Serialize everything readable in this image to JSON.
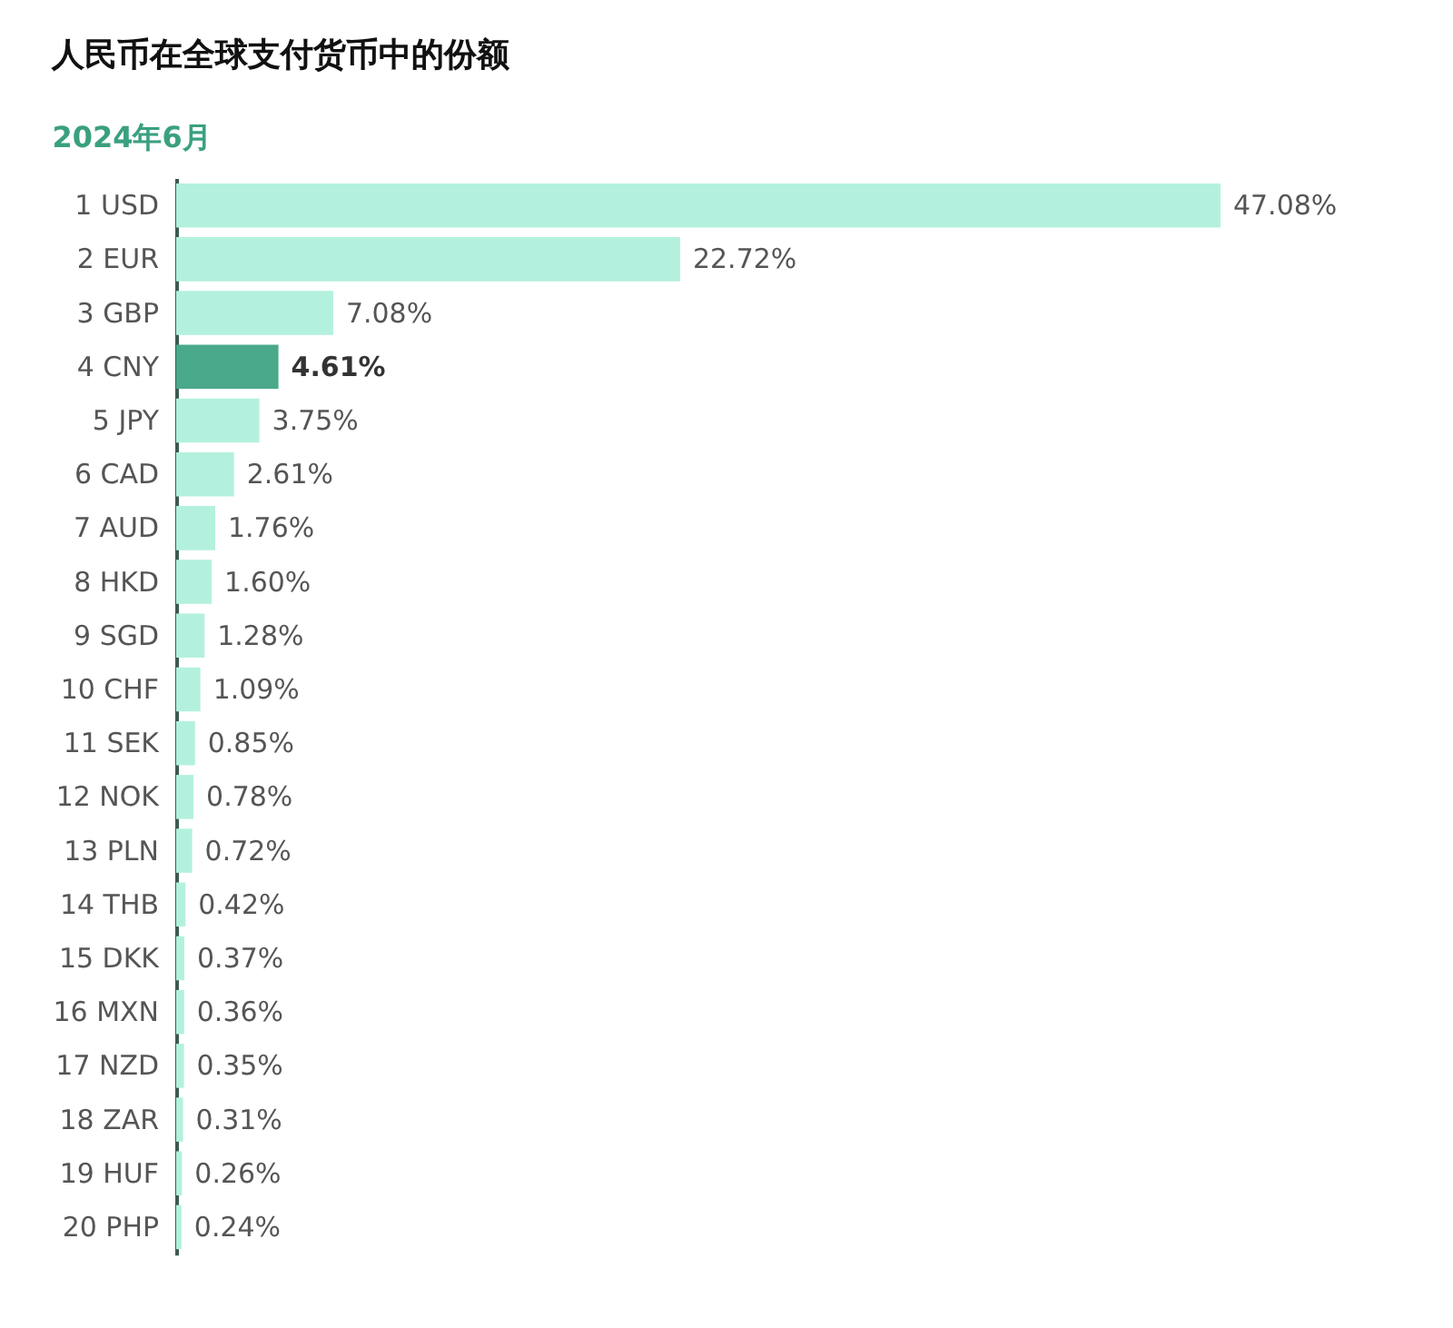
{
  "chart_data": {
    "type": "bar",
    "orientation": "horizontal",
    "title": "人民币在全球支付货币中的份额",
    "subtitle": "2024年6月",
    "categories": [
      "1 USD",
      "2 EUR",
      "3 GBP",
      "4 CNY",
      "5 JPY",
      "6 CAD",
      "7 AUD",
      "8 HKD",
      "9 SGD",
      "10 CHF",
      "11 SEK",
      "12 NOK",
      "13 PLN",
      "14 THB",
      "15 DKK",
      "16 MXN",
      "17 NZD",
      "18 ZAR",
      "19 HUF",
      "20 PHP"
    ],
    "values": [
      47.08,
      22.72,
      7.08,
      4.61,
      3.75,
      2.61,
      1.76,
      1.6,
      1.28,
      1.09,
      0.85,
      0.78,
      0.72,
      0.42,
      0.37,
      0.36,
      0.35,
      0.31,
      0.26,
      0.24
    ],
    "colors": [
      "#b3f1de",
      "#b3f1de",
      "#b3f1de",
      "#4aa98a",
      "#b3f1de",
      "#b3f1de",
      "#b3f1de",
      "#b3f1de",
      "#b3f1de",
      "#b3f1de",
      "#b3f1de",
      "#b3f1de",
      "#b3f1de",
      "#b3f1de",
      "#b3f1de",
      "#b3f1de",
      "#b3f1de",
      "#b3f1de",
      "#b3f1de",
      "#b3f1de"
    ],
    "value_labels": [
      "47.08%",
      "22.72%",
      "7.08%",
      "4.61%",
      "3.75%",
      "2.61%",
      "1.76%",
      "1.60%",
      "1.28%",
      "1.09%",
      "0.85%",
      "0.78%",
      "0.72%",
      "0.42%",
      "0.37%",
      "0.36%",
      "0.35%",
      "0.31%",
      "0.26%",
      "0.24%"
    ]
  }
}
